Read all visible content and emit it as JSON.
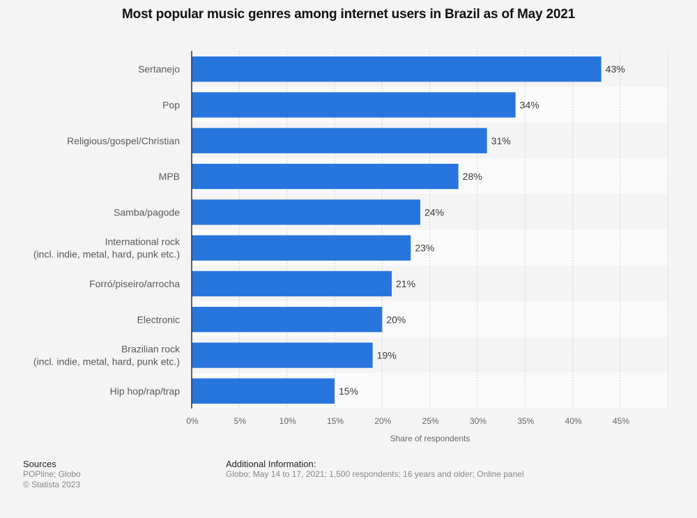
{
  "chart_data": {
    "type": "bar",
    "orientation": "horizontal",
    "title": "Most popular music genres among internet users in Brazil as of May 2021",
    "xlabel": "Share of respondents",
    "ylabel": "",
    "categories": [
      [
        "Sertanejo"
      ],
      [
        "Pop"
      ],
      [
        "Religious/gospel/Christian"
      ],
      [
        "MPB"
      ],
      [
        "Samba/pagode"
      ],
      [
        "International rock",
        "(incl. indie, metal, hard, punk etc.)"
      ],
      [
        "Forró/piseiro/arrocha"
      ],
      [
        "Electronic"
      ],
      [
        "Brazilian rock",
        "(incl. indie, metal, hard, punk etc.)"
      ],
      [
        "Hip hop/rap/trap"
      ]
    ],
    "values": [
      43,
      34,
      31,
      28,
      24,
      23,
      21,
      20,
      19,
      15
    ],
    "value_labels": [
      "43%",
      "34%",
      "31%",
      "28%",
      "24%",
      "23%",
      "21%",
      "20%",
      "19%",
      "15%"
    ],
    "xlim": [
      0,
      50
    ],
    "ticks": [
      0,
      5,
      10,
      15,
      20,
      25,
      30,
      35,
      40,
      45
    ],
    "tick_labels": [
      "0%",
      "5%",
      "10%",
      "15%",
      "20%",
      "25%",
      "30%",
      "35%",
      "40%",
      "45%"
    ],
    "grid": true,
    "bar_color": "#2876dd"
  },
  "footer": {
    "sources_heading": "Sources",
    "sources_text": "POPline; Globo",
    "copyright": "© Statista 2023",
    "info_heading": "Additional Information:",
    "info_text": "Globo; May 14 to 17, 2021; 1,500 respondents; 16 years and older; Online panel"
  }
}
